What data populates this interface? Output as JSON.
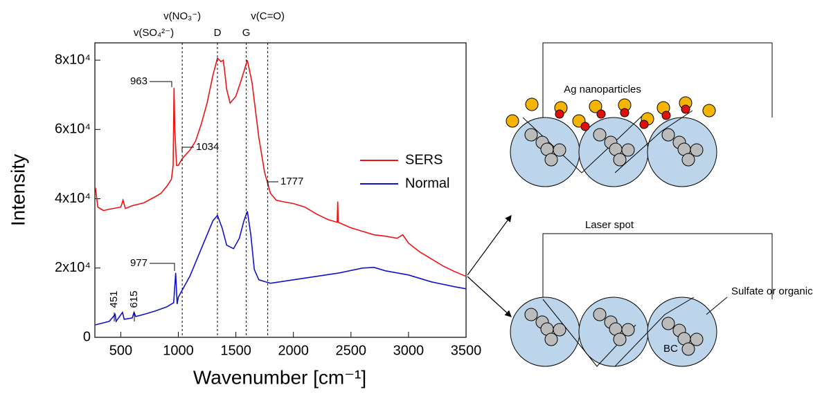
{
  "chart_data": {
    "type": "line",
    "x_label": "Wavenumber [cm⁻¹]",
    "y_label": "Intensity",
    "xlim": [
      275,
      3500
    ],
    "xticks": [
      500,
      1000,
      1500,
      2000,
      2500,
      3000,
      3500
    ],
    "ylim": [
      0,
      85000
    ],
    "yticks": [
      0,
      {
        "value": 20000,
        "label": "2x10⁴"
      },
      {
        "value": 40000,
        "label": "4x10⁴"
      },
      {
        "value": 60000,
        "label": "6x10⁴"
      },
      {
        "value": 80000,
        "label": "8x10⁴"
      }
    ],
    "legend": "right",
    "series": [
      {
        "name": "SERS",
        "color": "#ee1111",
        "x": [
          280,
          300,
          350,
          400,
          500,
          520,
          540,
          600,
          700,
          800,
          850,
          900,
          940,
          955,
          963,
          970,
          985,
          1000,
          1034,
          1100,
          1150,
          1200,
          1250,
          1300,
          1340,
          1370,
          1390,
          1400,
          1420,
          1450,
          1500,
          1550,
          1600,
          1640,
          1700,
          1750,
          1800,
          1850,
          1900,
          2000,
          2100,
          2200,
          2300,
          2380,
          2385,
          2390,
          2500,
          2600,
          2700,
          2800,
          2900,
          2950,
          3000,
          3100,
          3200,
          3300,
          3400,
          3500
        ],
        "values": [
          43200,
          37600,
          36600,
          37000,
          37600,
          39600,
          37200,
          38000,
          38800,
          40600,
          41600,
          43600,
          45600,
          49600,
          72000,
          59600,
          49600,
          49600,
          51600,
          54000,
          56600,
          61600,
          67600,
          75600,
          80600,
          79600,
          80000,
          77600,
          71600,
          67600,
          69600,
          74600,
          80000,
          73600,
          57600,
          47600,
          41600,
          39600,
          39200,
          38600,
          37600,
          35600,
          34000,
          33200,
          39200,
          33200,
          31600,
          30600,
          29600,
          29200,
          28600,
          29600,
          27200,
          24600,
          22600,
          20600,
          19000,
          17600
        ]
      },
      {
        "name": "Normal",
        "color": "#1111cc",
        "x": [
          280,
          400,
          451,
          460,
          515,
          530,
          600,
          615,
          630,
          700,
          800,
          900,
          960,
          977,
          990,
          1000,
          1100,
          1200,
          1250,
          1300,
          1340,
          1380,
          1420,
          1480,
          1530,
          1570,
          1600,
          1630,
          1660,
          1700,
          1800,
          2000,
          2200,
          2400,
          2600,
          2700,
          2800,
          3000,
          3200,
          3400,
          3500
        ],
        "values": [
          3600,
          4600,
          6600,
          4600,
          7200,
          5200,
          5600,
          7200,
          6000,
          6600,
          7600,
          8800,
          10000,
          18600,
          9600,
          11600,
          17600,
          25600,
          29600,
          33600,
          35200,
          31600,
          26600,
          25600,
          28600,
          33600,
          36400,
          29600,
          19600,
          16600,
          15600,
          16600,
          17600,
          18600,
          20000,
          20200,
          19200,
          18000,
          16000,
          14600,
          14000
        ]
      }
    ],
    "band_labels": [
      {
        "label": "v(SO₄²⁻)"
      },
      {
        "x": 1034,
        "label": "v(NO₃⁻)"
      },
      {
        "x": 1340,
        "label": "D"
      },
      {
        "x": 1590,
        "label": "G"
      },
      {
        "x": 1777,
        "label": "v(C=O)"
      }
    ],
    "peak_labels": [
      "963",
      "1034",
      "1777",
      "977",
      "451",
      "615"
    ]
  },
  "diagram": {
    "particles_label": "Ag nanoparticles",
    "laser_label": "Laser spot",
    "coating_label": "Sulfate or organics",
    "core_label": "BC"
  }
}
